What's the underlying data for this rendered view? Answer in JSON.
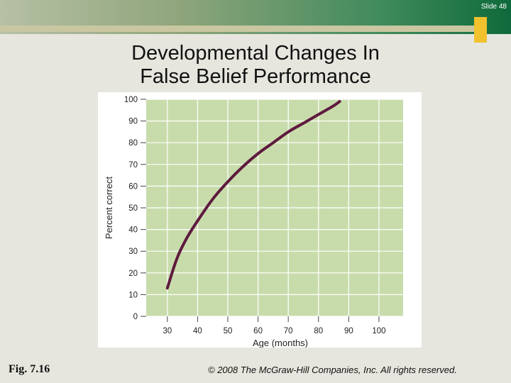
{
  "slide": {
    "number_label": "Slide 48",
    "title_line1": "Developmental Changes In",
    "title_line2": "False Belief Performance",
    "figure_label": "Fig. 7.16",
    "copyright": "© 2008 The McGraw-Hill Companies, Inc. All rights reserved."
  },
  "colors": {
    "plot_bg": "#c8dcab",
    "curve": "#5e1a3e",
    "grid": "#ffffff",
    "accent": "#f1c12e"
  },
  "chart_data": {
    "type": "line",
    "title": "",
    "xlabel": "Age (months)",
    "ylabel": "Percent correct",
    "xlim": [
      23,
      108
    ],
    "ylim": [
      0,
      100
    ],
    "xticks": [
      30,
      40,
      50,
      60,
      70,
      80,
      90,
      100
    ],
    "yticks": [
      0,
      10,
      20,
      30,
      40,
      50,
      60,
      70,
      80,
      90,
      100
    ],
    "grid": true,
    "series": [
      {
        "x": [
          30,
          33,
          36,
          40,
          45,
          50,
          55,
          60,
          65,
          70,
          75,
          80,
          85,
          87
        ],
        "y": [
          13,
          26,
          35,
          44,
          54,
          62,
          69,
          75,
          80,
          85,
          89,
          93,
          97,
          99
        ]
      }
    ]
  }
}
